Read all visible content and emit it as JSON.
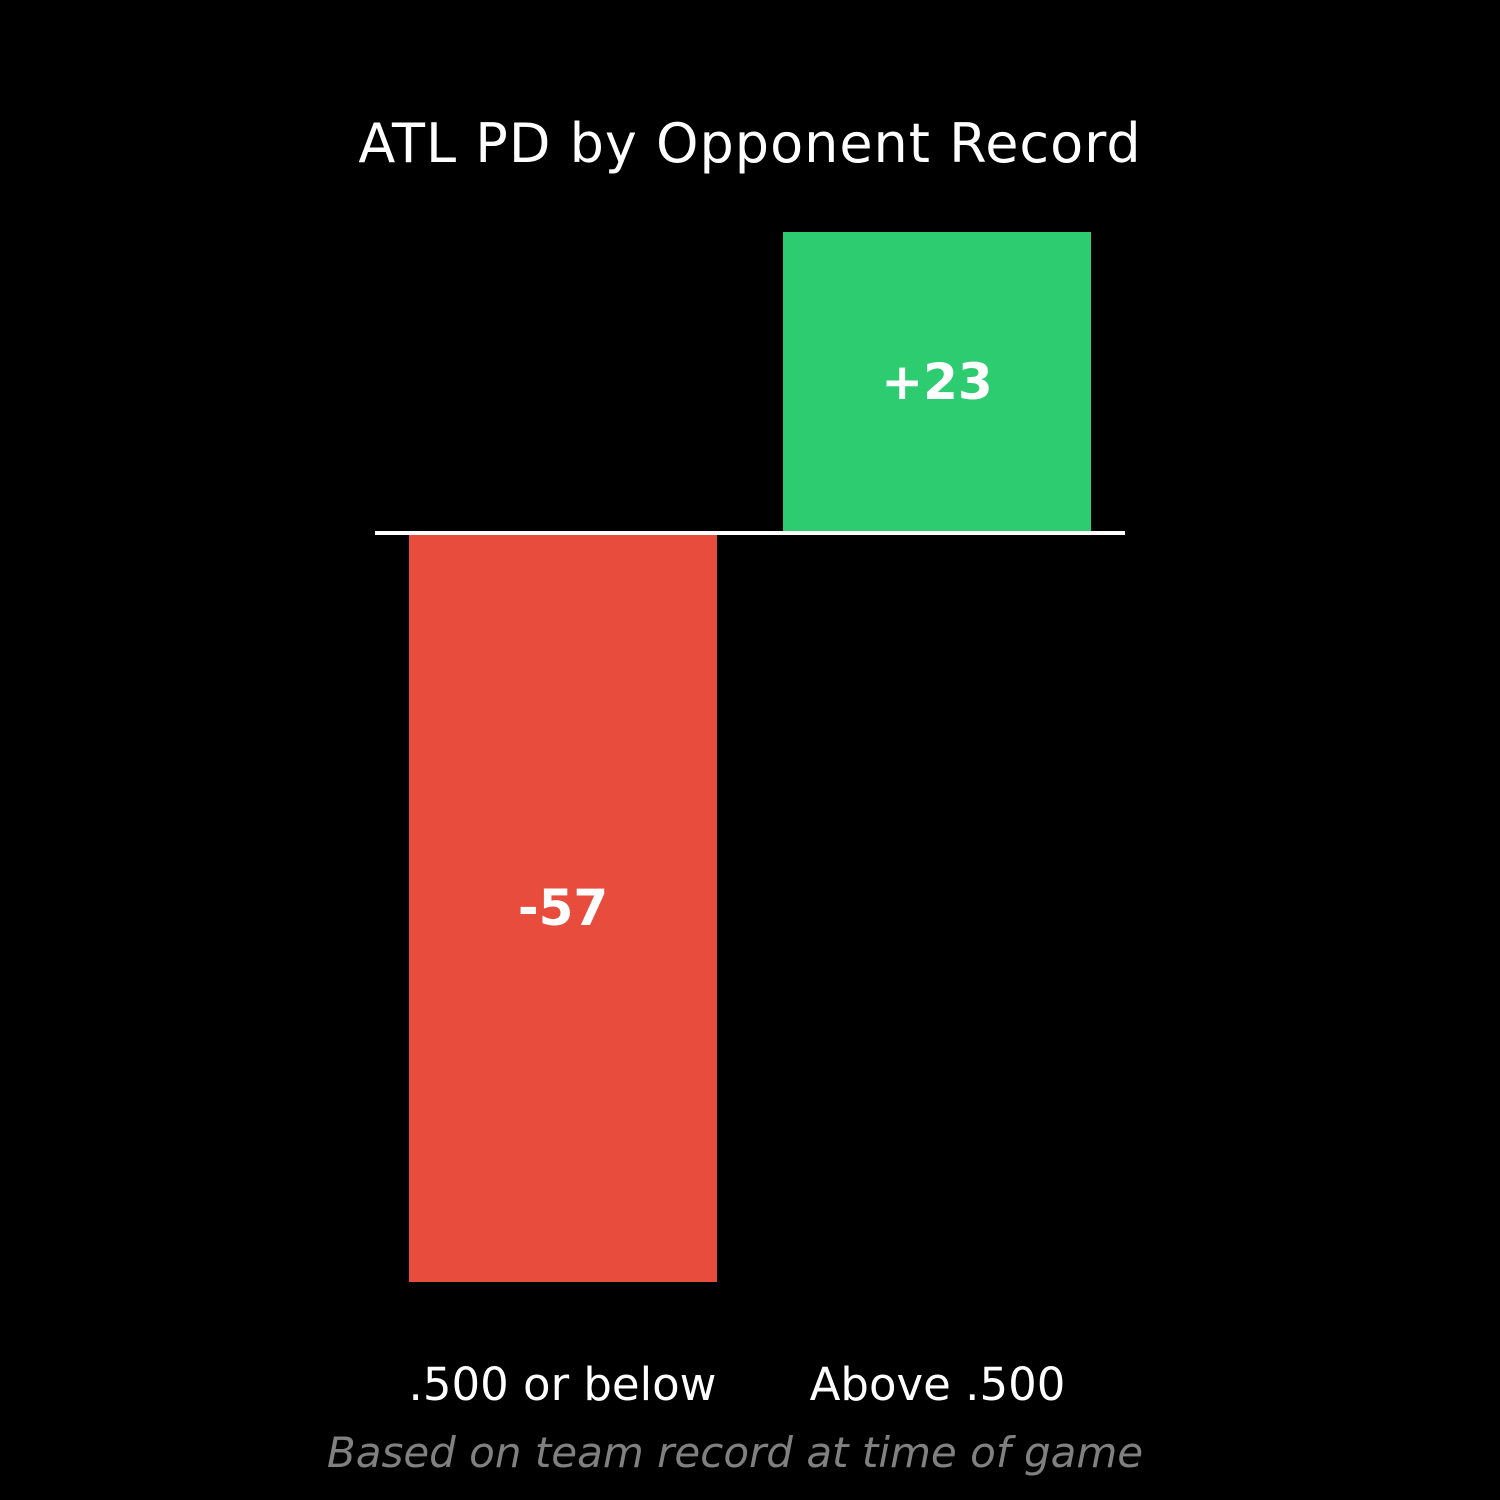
{
  "chart_data": {
    "type": "bar",
    "title": "ATL PD by Opponent Record",
    "subtitle": "Based on team record at time of game",
    "categories": [
      ".500 or below",
      "Above .500"
    ],
    "values": [
      -57,
      23
    ],
    "value_labels": [
      "-57",
      "+23"
    ],
    "ylim": [
      -57,
      23
    ],
    "baseline_value": 0,
    "grid": false,
    "legend": false,
    "colors": {
      "negative_bar": "#e74c3c",
      "positive_bar": "#2ecc71",
      "background": "#000000",
      "title_text": "#ffffff",
      "value_text": "#ffffff",
      "category_text": "#ffffff",
      "subtitle_text": "#808080",
      "baseline": "#ffffff"
    }
  }
}
